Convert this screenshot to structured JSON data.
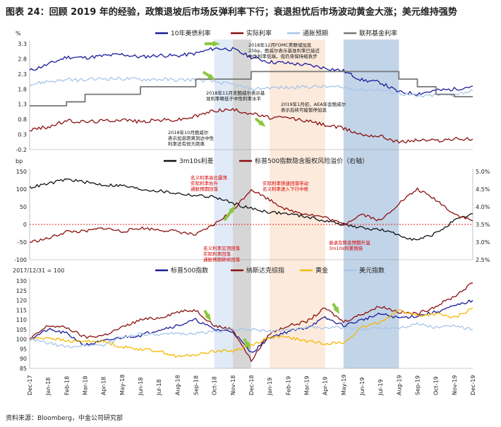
{
  "title": "图表 24：回顾 2019 年的经验，政策退坡后市场反弹利率下行；衰退担忧后市场波动黄金大涨；美元维持强势",
  "source": "资料来源：Bloomberg，中金公司研究部",
  "colors": {
    "blue_dark": "#1a1a9a",
    "red_dark": "#8b1010",
    "light_blue": "#a8c6e8",
    "gray": "#777777",
    "black": "#111111",
    "gold": "#f5b800",
    "red_annotation": "#d40000",
    "green_arrow": "#8dc63f",
    "shade_light_blue": "#dbe8f6",
    "shade_gray": "#cfcfcf",
    "shade_peach": "#fbe6d6",
    "shade_blue": "#b7cde4"
  },
  "x_axis": {
    "ticks": [
      "Dec-17",
      "Jan-18",
      "Feb-18",
      "Mar-18",
      "Apr-18",
      "May-18",
      "Jun-18",
      "Jul-18",
      "Aug-18",
      "Sep-18",
      "Oct-18",
      "Nov-18",
      "Dec-18",
      "Jan-19",
      "Feb-19",
      "Mar-19",
      "Apr-19",
      "May-19",
      "Jun-19",
      "Jul-19",
      "Aug-19",
      "Sep-19",
      "Oct-19",
      "Nov-19",
      "Dec-19"
    ]
  },
  "shaded_periods": [
    {
      "start": "Oct-18",
      "end": "Nov-18",
      "color": "shade_light_blue"
    },
    {
      "start": "Nov-18",
      "end": "Dec-18",
      "color": "shade_gray"
    },
    {
      "start": "Jan-19",
      "end": "Apr-19",
      "color": "shade_peach"
    },
    {
      "start": "May-19",
      "end": "Aug-19",
      "color": "shade_blue"
    }
  ],
  "chart_data": [
    {
      "type": "line",
      "panel": "top",
      "ylabel": "%",
      "ylim": [
        -0.2,
        3.3
      ],
      "yticks": [
        "3.3",
        "2.8",
        "2.3",
        "1.8",
        "1.3",
        "0.8",
        "0.3",
        "-0.2"
      ],
      "ytick_values": [
        3.3,
        2.8,
        2.3,
        1.8,
        1.3,
        0.8,
        0.3,
        -0.2
      ],
      "x": [
        "Dec-17",
        "Jan-18",
        "Feb-18",
        "Mar-18",
        "Apr-18",
        "May-18",
        "Jun-18",
        "Jul-18",
        "Aug-18",
        "Sep-18",
        "Oct-18",
        "Nov-18",
        "Dec-18",
        "Jan-19",
        "Feb-19",
        "Mar-19",
        "Apr-19",
        "May-19",
        "Jun-19",
        "Jul-19",
        "Aug-19",
        "Sep-19",
        "Oct-19",
        "Nov-19",
        "Dec-19"
      ],
      "series": [
        {
          "name": "10年美债利率",
          "color": "blue_dark",
          "style": "line",
          "values": [
            2.41,
            2.62,
            2.86,
            2.84,
            2.9,
            2.95,
            2.86,
            2.92,
            2.9,
            2.98,
            3.15,
            3.12,
            2.86,
            2.7,
            2.66,
            2.6,
            2.5,
            2.4,
            2.1,
            2.02,
            1.7,
            1.65,
            1.75,
            1.8,
            1.9
          ]
        },
        {
          "name": "实际利率",
          "color": "red_dark",
          "style": "line",
          "values": [
            0.45,
            0.55,
            0.75,
            0.72,
            0.75,
            0.8,
            0.72,
            0.78,
            0.78,
            0.9,
            1.1,
            1.12,
            1.0,
            0.85,
            0.85,
            0.75,
            0.62,
            0.5,
            0.3,
            0.25,
            0.05,
            0.12,
            0.1,
            0.15,
            0.15
          ]
        },
        {
          "name": "通胀预期",
          "color": "light_blue",
          "style": "line",
          "values": [
            1.95,
            2.06,
            2.1,
            2.1,
            2.15,
            2.15,
            2.12,
            2.13,
            2.1,
            2.12,
            2.05,
            1.95,
            1.8,
            1.85,
            1.85,
            1.88,
            1.88,
            1.85,
            1.78,
            1.78,
            1.67,
            1.55,
            1.6,
            1.62,
            1.75
          ]
        },
        {
          "name": "联邦基金利率",
          "color": "gray",
          "style": "step",
          "values": [
            1.25,
            1.25,
            1.38,
            1.63,
            1.63,
            1.63,
            1.88,
            1.88,
            1.88,
            2.13,
            2.13,
            2.13,
            2.38,
            2.38,
            2.38,
            2.38,
            2.38,
            2.38,
            2.38,
            2.38,
            2.13,
            1.88,
            1.63,
            1.55,
            1.55
          ]
        }
      ],
      "annotations": [
        {
          "text": "2018年12月FOMC美联储加息"
        },
        {
          "text": "25bp，鲍威尔表示基准利率已接近"
        },
        {
          "text": "中性利率低端，但仍将保持缩表步"
        },
        {
          "text": "2018年11月末鲍威尔表示基"
        },
        {
          "text": "准利率略低于中性利率水平"
        },
        {
          "text": "2019年1月初，AEA年会鲍威尔"
        },
        {
          "text": "表示后续可能暂停加息"
        },
        {
          "text": "2018年10月鲍威尔"
        },
        {
          "text": "表示加息距离到达中性"
        },
        {
          "text": "利率还有很大距离"
        }
      ]
    },
    {
      "type": "line",
      "panel": "middle",
      "ylabel": "bp",
      "ylim": [
        -100,
        150
      ],
      "yticks": [
        "150",
        "100",
        "50",
        "0",
        "-50",
        "-100"
      ],
      "ytick_values": [
        150,
        100,
        50,
        0,
        -50,
        -100
      ],
      "ylim_right": [
        2.5,
        5.0
      ],
      "yticks_right": [
        "5.0%",
        "4.5%",
        "4.0%",
        "3.5%",
        "3.0%",
        "2.5%"
      ],
      "ytick_values_right": [
        5.0,
        4.5,
        4.0,
        3.5,
        3.0,
        2.5
      ],
      "x": [
        "Dec-17",
        "Jan-18",
        "Feb-18",
        "Mar-18",
        "Apr-18",
        "May-18",
        "Jun-18",
        "Jul-18",
        "Aug-18",
        "Sep-18",
        "Oct-18",
        "Nov-18",
        "Dec-18",
        "Jan-19",
        "Feb-19",
        "Mar-19",
        "Apr-19",
        "May-19",
        "Jun-19",
        "Jul-19",
        "Aug-19",
        "Sep-19",
        "Oct-19",
        "Nov-19",
        "Dec-19"
      ],
      "series": [
        {
          "name": "3m10s利差",
          "color": "black",
          "axis": "left",
          "values": [
            105,
            115,
            128,
            120,
            112,
            110,
            100,
            95,
            88,
            82,
            78,
            60,
            45,
            35,
            30,
            22,
            10,
            0,
            -10,
            -15,
            -30,
            -45,
            -25,
            10,
            30
          ]
        },
        {
          "name": "标普500指数隐含股权风险溢价（右轴）",
          "color": "red_dark",
          "axis": "right",
          "values": [
            3.0,
            3.1,
            3.3,
            3.3,
            3.4,
            3.3,
            3.4,
            3.35,
            3.3,
            3.2,
            3.5,
            3.9,
            4.5,
            4.2,
            3.9,
            3.8,
            3.7,
            3.5,
            3.8,
            3.6,
            4.1,
            4.5,
            4.2,
            3.8,
            3.6
          ]
        }
      ],
      "zero_line": 0,
      "annotations": [
        {
          "text": "名义利率高位震荡"
        },
        {
          "text": "实际利率抬升"
        },
        {
          "text": "通胀预期回落"
        },
        {
          "text": "实际利率快速回落带动"
        },
        {
          "text": "名义利率进入下行中枢"
        },
        {
          "text": "名义利率见顶回落"
        },
        {
          "text": "实际利率回落"
        },
        {
          "text": "通胀预期继续回落"
        },
        {
          "text": "衰退及降息预期升温"
        },
        {
          "text": "3m10s利差倒挂"
        }
      ]
    },
    {
      "type": "line",
      "panel": "bottom",
      "ylabel": "2017/12/31 = 100",
      "ylim": [
        85,
        130
      ],
      "yticks": [
        "130",
        "125",
        "120",
        "115",
        "110",
        "105",
        "100",
        "95",
        "90",
        "85"
      ],
      "ytick_values": [
        130,
        125,
        120,
        115,
        110,
        105,
        100,
        95,
        90,
        85
      ],
      "x": [
        "Dec-17",
        "Jan-18",
        "Feb-18",
        "Mar-18",
        "Apr-18",
        "May-18",
        "Jun-18",
        "Jul-18",
        "Aug-18",
        "Sep-18",
        "Oct-18",
        "Nov-18",
        "Dec-18",
        "Jan-19",
        "Feb-19",
        "Mar-19",
        "Apr-19",
        "May-19",
        "Jun-19",
        "Jul-19",
        "Aug-19",
        "Sep-19",
        "Oct-19",
        "Nov-19",
        "Dec-19"
      ],
      "series": [
        {
          "name": "标普500指数",
          "color": "blue_dark",
          "values": [
            100,
            105,
            103,
            97,
            99,
            101,
            102,
            105,
            107,
            110,
            105,
            104,
            93,
            101,
            104,
            106,
            111,
            107,
            110,
            113,
            111,
            112,
            114,
            117,
            120
          ]
        },
        {
          "name": "纳斯达克综指",
          "color": "red_dark",
          "values": [
            100,
            107,
            106,
            101,
            102,
            106,
            110,
            111,
            114,
            115,
            107,
            105,
            89,
            103,
            107,
            109,
            116,
            109,
            113,
            117,
            114,
            113,
            117,
            122,
            129
          ]
        },
        {
          "name": "黄金",
          "color": "gold",
          "values": [
            100,
            101,
            99,
            99,
            99,
            96,
            95,
            94,
            91,
            92,
            94,
            94,
            97,
            101,
            101,
            99,
            98,
            98,
            106,
            109,
            115,
            112,
            113,
            111,
            116
          ]
        },
        {
          "name": "美元指数",
          "color": "light_blue",
          "values": [
            100,
            98,
            96,
            97,
            97,
            101,
            103,
            102,
            103,
            103,
            104,
            105,
            105,
            104,
            105,
            106,
            106,
            106,
            105,
            106,
            106,
            108,
            106,
            107,
            105
          ]
        }
      ]
    }
  ]
}
